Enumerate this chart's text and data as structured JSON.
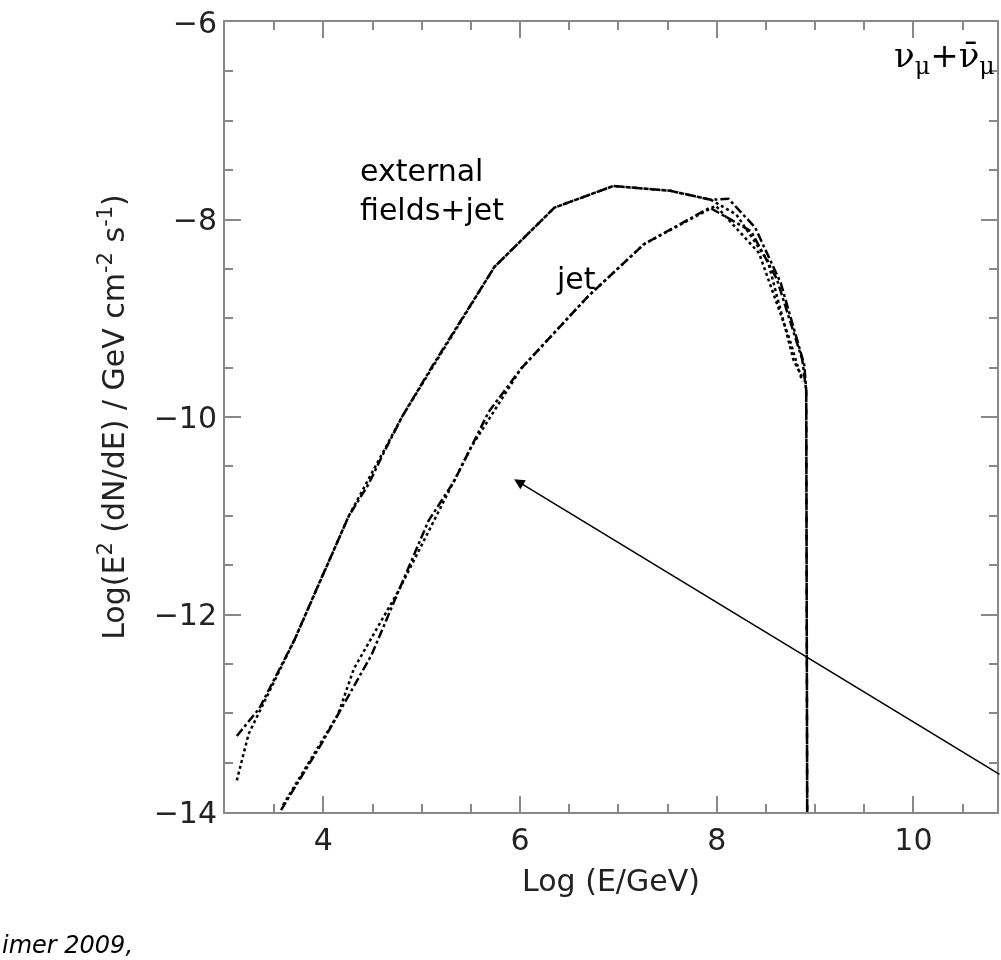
{
  "chart_data": {
    "type": "line",
    "xlabel": "Log (E/GeV)",
    "ylabel": "Log(E$^{2}$ (dN/dE) / GeV cm$^{-2}$ s$^{-1}$)",
    "xlim": [
      3,
      10.85
    ],
    "ylim": [
      -14,
      -6
    ],
    "xticks": [
      {
        "value": 3.5,
        "label": null
      },
      4,
      {
        "value": 4.5,
        "label": null
      },
      {
        "value": 5,
        "label": null
      },
      {
        "value": 5.5,
        "label": null
      },
      6,
      {
        "value": 6.5,
        "label": null
      },
      {
        "value": 7,
        "label": null
      },
      {
        "value": 7.5,
        "label": null
      },
      8,
      {
        "value": 8.5,
        "label": null
      },
      {
        "value": 9,
        "label": null
      },
      {
        "value": 9.5,
        "label": null
      },
      10,
      {
        "value": 10.5,
        "label": null
      }
    ],
    "yticks": [
      -14,
      {
        "value": -13.5,
        "label": null
      },
      {
        "value": -13,
        "label": null
      },
      {
        "value": -12.5,
        "label": null
      },
      -12,
      {
        "value": -11.5,
        "label": null
      },
      {
        "value": -11,
        "label": null
      },
      {
        "value": -10.5,
        "label": null
      },
      -10,
      {
        "value": -9.5,
        "label": null
      },
      {
        "value": -9,
        "label": null
      },
      {
        "value": -8.5,
        "label": null
      },
      -8,
      {
        "value": -7.5,
        "label": null
      },
      {
        "value": -7,
        "label": null
      },
      {
        "value": -6.5,
        "label": null
      },
      -6
    ],
    "grid": false,
    "legend": false,
    "marker": "none",
    "series": [
      {
        "name": "external\nfields+jet",
        "color": "#000000",
        "line_style": "dashed",
        "x": [
          3.12,
          3.35,
          3.71,
          3.95,
          4.26,
          4.46,
          4.62,
          4.81,
          5.13,
          5.74,
          6.35,
          6.95,
          7.53,
          7.94,
          8.12,
          8.39,
          8.65,
          8.89,
          8.91,
          8.92
        ],
        "values": [
          -13.23,
          -12.95,
          -12.25,
          -11.7,
          -11.0,
          -10.68,
          -10.35,
          -9.98,
          -9.45,
          -8.48,
          -7.88,
          -7.66,
          -7.71,
          -7.8,
          -7.79,
          -8.08,
          -8.64,
          -9.47,
          -9.73,
          -14
        ]
      },
      {
        "color": "#000000",
        "line_style": "dotted",
        "x": [
          3.12,
          3.24,
          3.71,
          4.26,
          4.81,
          5.74,
          6.35,
          6.95,
          7.53,
          7.94,
          8.2,
          8.52,
          8.78,
          8.87
        ],
        "values": [
          -13.68,
          -13.21,
          -12.25,
          -11.0,
          -9.98,
          -8.48,
          -7.88,
          -7.66,
          -7.71,
          -7.8,
          -7.95,
          -8.42,
          -9.42,
          -9.6
        ]
      },
      {
        "name": "jet",
        "color": "#000000",
        "line_style": "dashed",
        "x": [
          3.57,
          3.98,
          4.49,
          4.77,
          5.07,
          5.33,
          5.5,
          5.68,
          6.01,
          6.69,
          7.26,
          7.93,
          8.35,
          8.61,
          8.87,
          8.91,
          8.92
        ],
        "values": [
          -13.98,
          -13.31,
          -12.41,
          -11.75,
          -11.05,
          -10.65,
          -10.31,
          -9.95,
          -9.51,
          -8.78,
          -8.25,
          -7.88,
          -8.12,
          -8.6,
          -9.42,
          -9.73,
          -14
        ]
      },
      {
        "color": "#000000",
        "line_style": "dotted",
        "x": [
          3.59,
          4.15,
          4.31,
          4.77,
          5.5,
          6.01,
          6.69,
          7.26,
          7.99,
          8.43,
          8.74,
          8.87
        ],
        "values": [
          -13.93,
          -13.01,
          -12.55,
          -11.75,
          -10.31,
          -9.51,
          -8.78,
          -8.25,
          -7.86,
          -8.34,
          -9.21,
          -9.64
        ]
      }
    ],
    "annotations": [
      "ν$_{μ}$+ν̄$_{μ}$",
      "imer 2009,"
    ]
  }
}
